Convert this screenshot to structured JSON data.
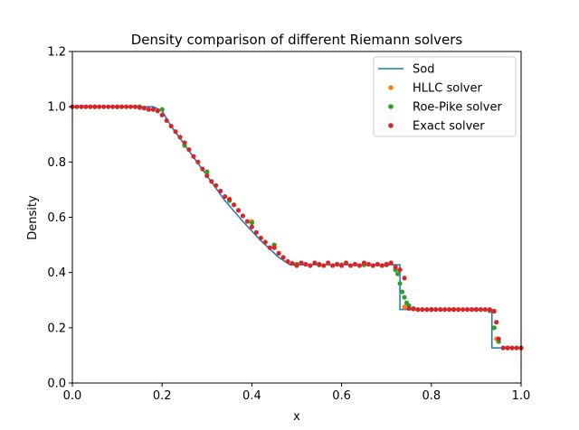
{
  "chart_data": {
    "type": "line",
    "title": "Density comparison of different Riemann solvers",
    "xlabel": "x",
    "ylabel": "Density",
    "xlim": [
      0,
      1
    ],
    "ylim": [
      0,
      1.2
    ],
    "xticks": [
      "0.0",
      "0.2",
      "0.4",
      "0.6",
      "0.8",
      "1.0"
    ],
    "yticks": [
      "0.0",
      "0.2",
      "0.4",
      "0.6",
      "0.8",
      "1.0",
      "1.2"
    ],
    "grid": false,
    "legend_position": "top-right",
    "series": [
      {
        "name": "Sod",
        "style": "line",
        "color": "#1f77b4",
        "x": [
          0,
          0.18,
          0.2,
          0.22,
          0.26,
          0.3,
          0.34,
          0.38,
          0.42,
          0.46,
          0.485,
          0.73,
          0.73,
          0.935,
          0.935,
          1.0
        ],
        "y": [
          1.0,
          1.0,
          0.985,
          0.93,
          0.84,
          0.75,
          0.66,
          0.585,
          0.515,
          0.455,
          0.428,
          0.428,
          0.266,
          0.266,
          0.127,
          0.127
        ]
      },
      {
        "name": "HLLC solver",
        "style": "markers",
        "color": "#ff7f0e",
        "x": [
          0.0,
          0.05,
          0.1,
          0.15,
          0.2,
          0.25,
          0.3,
          0.35,
          0.4,
          0.45,
          0.5,
          0.55,
          0.6,
          0.65,
          0.7,
          0.72,
          0.74,
          0.8,
          0.85,
          0.9,
          0.93,
          0.945,
          0.97,
          1.0
        ],
        "y": [
          1.0,
          1.0,
          1.0,
          1.0,
          0.99,
          0.86,
          0.76,
          0.665,
          0.585,
          0.5,
          0.43,
          0.428,
          0.428,
          0.428,
          0.428,
          0.41,
          0.275,
          0.266,
          0.266,
          0.266,
          0.262,
          0.16,
          0.127,
          0.127
        ]
      },
      {
        "name": "Roe-Pike solver",
        "style": "markers",
        "color": "#2ca02c",
        "x": [
          0.0,
          0.05,
          0.1,
          0.15,
          0.2,
          0.25,
          0.3,
          0.35,
          0.4,
          0.45,
          0.5,
          0.55,
          0.6,
          0.65,
          0.7,
          0.72,
          0.725,
          0.73,
          0.735,
          0.74,
          0.745,
          0.75,
          0.76,
          0.8,
          0.85,
          0.9,
          0.93,
          0.94,
          0.95,
          0.97,
          1.0
        ],
        "y": [
          1.0,
          1.0,
          1.0,
          1.0,
          0.99,
          0.86,
          0.765,
          0.66,
          0.58,
          0.5,
          0.43,
          0.428,
          0.428,
          0.428,
          0.428,
          0.41,
          0.395,
          0.36,
          0.33,
          0.31,
          0.29,
          0.28,
          0.27,
          0.266,
          0.266,
          0.266,
          0.262,
          0.2,
          0.15,
          0.127,
          0.127
        ]
      },
      {
        "name": "Exact solver",
        "style": "markers",
        "color": "#d62728",
        "x": [
          0.0,
          0.01,
          0.02,
          0.03,
          0.04,
          0.05,
          0.06,
          0.07,
          0.08,
          0.09,
          0.1,
          0.11,
          0.12,
          0.13,
          0.14,
          0.15,
          0.16,
          0.17,
          0.18,
          0.19,
          0.2,
          0.21,
          0.22,
          0.23,
          0.24,
          0.25,
          0.26,
          0.27,
          0.28,
          0.29,
          0.3,
          0.31,
          0.32,
          0.33,
          0.34,
          0.35,
          0.36,
          0.37,
          0.38,
          0.39,
          0.4,
          0.41,
          0.42,
          0.43,
          0.44,
          0.45,
          0.46,
          0.47,
          0.48,
          0.49,
          0.5,
          0.51,
          0.52,
          0.53,
          0.54,
          0.55,
          0.56,
          0.57,
          0.58,
          0.59,
          0.6,
          0.61,
          0.62,
          0.63,
          0.64,
          0.65,
          0.66,
          0.67,
          0.68,
          0.69,
          0.7,
          0.71,
          0.72,
          0.73,
          0.74,
          0.75,
          0.76,
          0.77,
          0.78,
          0.79,
          0.8,
          0.81,
          0.82,
          0.83,
          0.84,
          0.85,
          0.86,
          0.87,
          0.88,
          0.89,
          0.9,
          0.91,
          0.92,
          0.93,
          0.94,
          0.945,
          0.95,
          0.96,
          0.97,
          0.98,
          0.99,
          1.0
        ],
        "y": [
          1.0,
          1.0,
          1.0,
          1.0,
          1.0,
          1.0,
          1.0,
          1.0,
          1.0,
          1.0,
          1.0,
          1.0,
          1.0,
          1.0,
          1.0,
          0.997,
          0.995,
          0.99,
          0.99,
          0.985,
          0.97,
          0.95,
          0.93,
          0.91,
          0.89,
          0.87,
          0.845,
          0.82,
          0.8,
          0.775,
          0.75,
          0.73,
          0.715,
          0.695,
          0.675,
          0.665,
          0.645,
          0.625,
          0.605,
          0.585,
          0.565,
          0.545,
          0.525,
          0.51,
          0.49,
          0.49,
          0.47,
          0.455,
          0.44,
          0.433,
          0.425,
          0.435,
          0.43,
          0.425,
          0.435,
          0.43,
          0.425,
          0.435,
          0.425,
          0.43,
          0.425,
          0.435,
          0.425,
          0.43,
          0.425,
          0.435,
          0.43,
          0.425,
          0.43,
          0.425,
          0.43,
          0.435,
          0.42,
          0.41,
          0.38,
          0.27,
          0.268,
          0.266,
          0.266,
          0.266,
          0.266,
          0.266,
          0.266,
          0.266,
          0.266,
          0.266,
          0.266,
          0.266,
          0.266,
          0.266,
          0.266,
          0.266,
          0.266,
          0.266,
          0.26,
          0.22,
          0.16,
          0.127,
          0.127,
          0.127,
          0.127,
          0.127
        ]
      }
    ]
  }
}
